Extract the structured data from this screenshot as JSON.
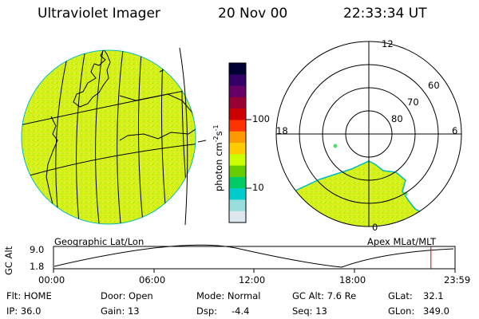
{
  "header": {
    "title": "Ultraviolet Imager",
    "date": "20 Nov 00",
    "time": "22:33:34 UT"
  },
  "colorbar": {
    "unit_label": "photon cm",
    "unit_exp1": "-2",
    "unit_s": "s",
    "unit_exp2": "-1",
    "ticks": [
      "100",
      "10"
    ],
    "colors": [
      "#000033",
      "#330066",
      "#660066",
      "#990033",
      "#cc0000",
      "#ff3300",
      "#ff9900",
      "#ffcc00",
      "#ccff00",
      "#66cc00",
      "#00cc66",
      "#00cccc",
      "#99dddd",
      "#dde8ee"
    ]
  },
  "polar": {
    "lat_labels": [
      "60",
      "70",
      "80"
    ],
    "mlt_labels": {
      "top": "12",
      "left": "18",
      "right": "6",
      "bottom": "0"
    }
  },
  "map_labels": {
    "geo": "Geographic Lat/Lon",
    "apex": "Apex MLat/MLT"
  },
  "timeline": {
    "axis_label": "GC Alt",
    "y_max": "9.0",
    "y_min": "1.8",
    "x_ticks": [
      "00:00",
      "06:00",
      "12:00",
      "18:00",
      "23:59"
    ],
    "current_time_hours": 22.56
  },
  "info": {
    "row1": {
      "flt": "Flt: HOME",
      "door": "Door: Open",
      "mode": "Mode: Normal",
      "gcalt": "GC Alt: 7.6 Re",
      "glat_label": "GLat:",
      "glat_value": "32.1"
    },
    "row2": {
      "ip": "IP: 36.0",
      "gain": "Gain: 13",
      "dsp_label": "Dsp:",
      "dsp_value": "-4.4",
      "seq": "Seq: 13",
      "glon_label": "GLon:",
      "glon_value": "349.0"
    }
  },
  "colors": {
    "disk": "#d4f21a",
    "border": "#00bbbb"
  }
}
